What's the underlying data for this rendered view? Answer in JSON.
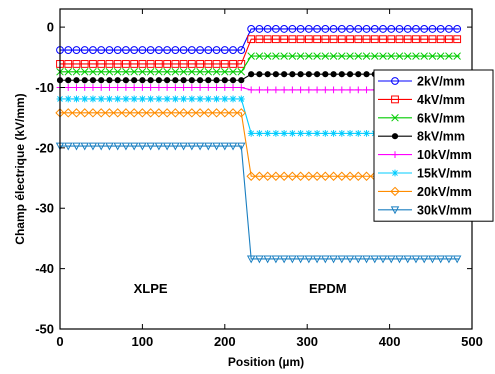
{
  "chart_data": {
    "type": "line",
    "title": "",
    "xlabel": "Position (µm)",
    "ylabel": "Champ électrique (kV/mm)",
    "xlim": [
      0,
      500
    ],
    "ylim": [
      -50,
      3
    ],
    "xticks": [
      0,
      100,
      200,
      300,
      400,
      500
    ],
    "yticks": [
      0,
      -10,
      -20,
      -30,
      -40,
      -50
    ],
    "xtick_labels": [
      "0",
      "100",
      "200",
      "300",
      "400",
      "500"
    ],
    "ytick_labels": [
      "0",
      "-10",
      "-20",
      "-30",
      "-40",
      "-50"
    ],
    "grid": false,
    "legend": "right",
    "interface_x": [
      220,
      232
    ],
    "marker_xs_xlpe": [
      0,
      10,
      20,
      30,
      40,
      50,
      60,
      70,
      80,
      90,
      100,
      110,
      120,
      130,
      140,
      150,
      160,
      170,
      180,
      190,
      200,
      210,
      220
    ],
    "marker_xs_epdm": [
      232,
      242,
      252,
      262,
      272,
      282,
      292,
      302,
      312,
      322,
      332,
      342,
      352,
      362,
      372,
      382,
      392,
      402,
      412,
      422,
      432,
      442,
      452,
      462,
      472,
      482
    ],
    "annotations": [
      {
        "text": "XLPE",
        "x": 110,
        "y": -44
      },
      {
        "text": "EPDM",
        "x": 325,
        "y": -44
      }
    ],
    "series": [
      {
        "name": "2kV/mm",
        "xlpe": -3.8,
        "epdm": -0.3,
        "color": "#0000ff",
        "marker": "circle"
      },
      {
        "name": "4kV/mm",
        "xlpe": -6.1,
        "epdm": -2.0,
        "color": "#ff0000",
        "marker": "square"
      },
      {
        "name": "6kV/mm",
        "xlpe": -7.4,
        "epdm": -4.8,
        "color": "#00cc00",
        "marker": "x"
      },
      {
        "name": "8kV/mm",
        "xlpe": -8.8,
        "epdm": -7.8,
        "color": "#000000",
        "marker": "dot"
      },
      {
        "name": "10kV/mm",
        "xlpe": -10.0,
        "epdm": -10.4,
        "color": "#ff00ff",
        "marker": "plus"
      },
      {
        "name": "15kV/mm",
        "xlpe": -11.9,
        "epdm": -17.6,
        "color": "#00ccff",
        "marker": "star"
      },
      {
        "name": "20kV/mm",
        "xlpe": -14.2,
        "epdm": -24.7,
        "color": "#ff8c00",
        "marker": "diamond"
      },
      {
        "name": "30kV/mm",
        "xlpe": -19.7,
        "epdm": -38.4,
        "color": "#1a7fc1",
        "marker": "triangle-down"
      }
    ]
  }
}
